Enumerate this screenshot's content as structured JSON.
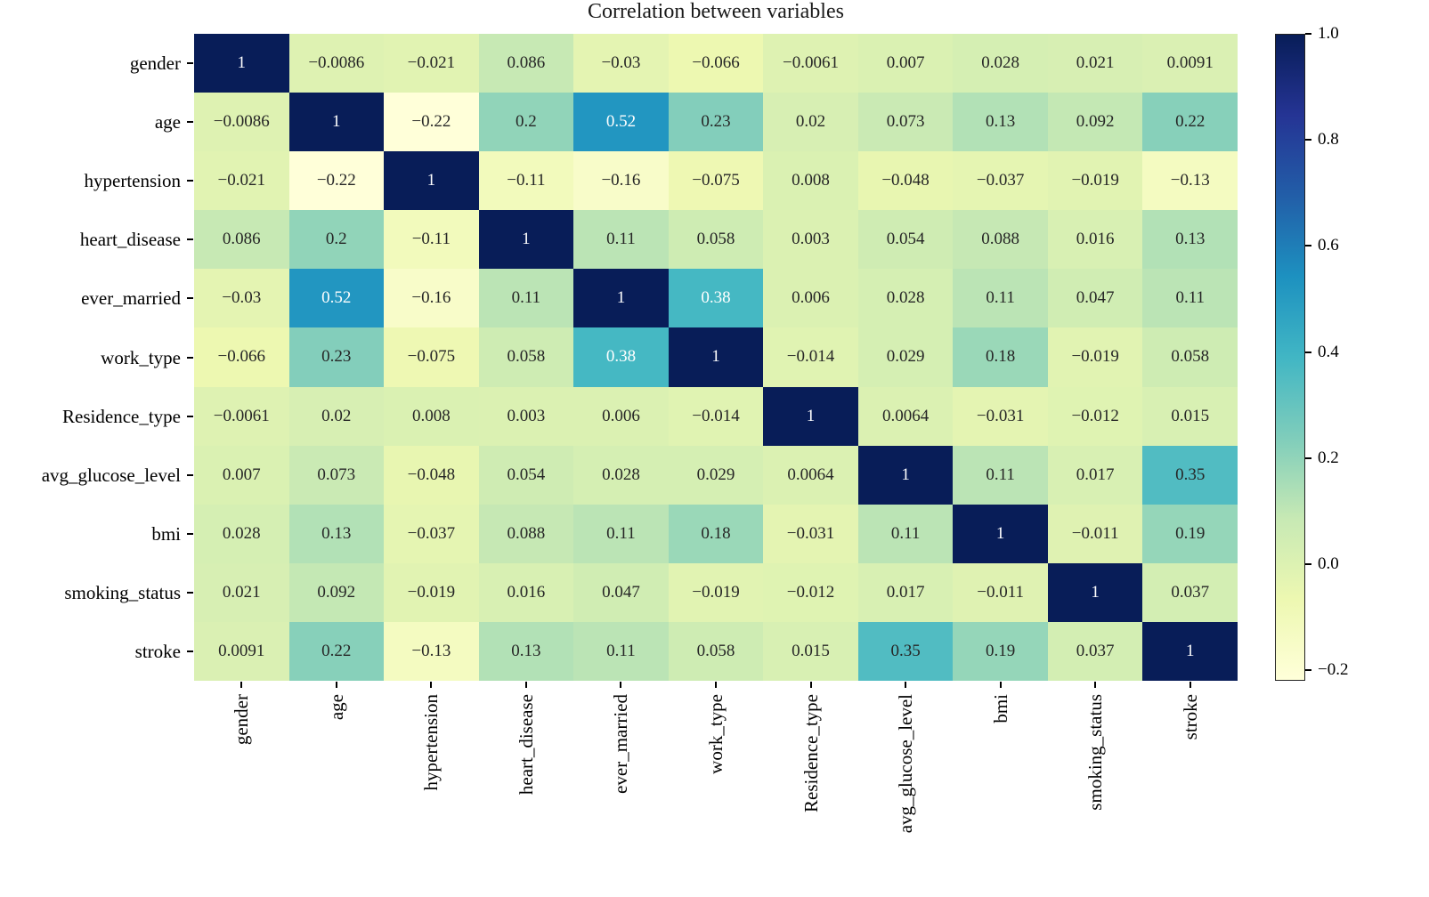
{
  "chart_data": {
    "type": "heatmap",
    "title": "Correlation between variables",
    "variables": [
      "gender",
      "age",
      "hypertension",
      "heart_disease",
      "ever_married",
      "work_type",
      "Residence_type",
      "avg_glucose_level",
      "bmi",
      "smoking_status",
      "stroke"
    ],
    "values": [
      [
        1,
        -0.0086,
        -0.021,
        0.086,
        -0.03,
        -0.066,
        -0.0061,
        0.007,
        0.028,
        0.021,
        0.0091
      ],
      [
        -0.0086,
        1,
        -0.22,
        0.2,
        0.52,
        0.23,
        0.02,
        0.073,
        0.13,
        0.092,
        0.22
      ],
      [
        -0.021,
        -0.22,
        1,
        -0.11,
        -0.16,
        -0.075,
        0.008,
        -0.048,
        -0.037,
        -0.019,
        -0.13
      ],
      [
        0.086,
        0.2,
        -0.11,
        1,
        0.11,
        0.058,
        0.003,
        0.054,
        0.088,
        0.016,
        0.13
      ],
      [
        -0.03,
        0.52,
        -0.16,
        0.11,
        1,
        0.38,
        0.006,
        0.028,
        0.11,
        0.047,
        0.11
      ],
      [
        -0.066,
        0.23,
        -0.075,
        0.058,
        0.38,
        1,
        -0.014,
        0.029,
        0.18,
        -0.019,
        0.058
      ],
      [
        -0.0061,
        0.02,
        0.008,
        0.003,
        0.006,
        -0.014,
        1,
        0.0064,
        -0.031,
        -0.012,
        0.015
      ],
      [
        0.007,
        0.073,
        -0.048,
        0.054,
        0.028,
        0.029,
        0.0064,
        1,
        0.11,
        0.017,
        0.35
      ],
      [
        0.028,
        0.13,
        -0.037,
        0.088,
        0.11,
        0.18,
        -0.031,
        0.11,
        1,
        -0.011,
        0.19
      ],
      [
        0.021,
        0.092,
        -0.019,
        0.016,
        0.047,
        -0.019,
        -0.012,
        0.017,
        -0.011,
        1,
        0.037
      ],
      [
        0.0091,
        0.22,
        -0.13,
        0.13,
        0.11,
        0.058,
        0.015,
        0.35,
        0.19,
        0.037,
        1
      ]
    ],
    "vmin": -0.22,
    "vmax": 1.0,
    "colormap": {
      "name": "YlGnBu",
      "stops": [
        "#ffffd9",
        "#edf8b1",
        "#c7e9b4",
        "#7fcdbb",
        "#41b6c4",
        "#1d91c0",
        "#225ea8",
        "#253494",
        "#081d58"
      ]
    },
    "colorbar_ticks": [
      1.0,
      0.8,
      0.6,
      0.4,
      0.2,
      0.0,
      -0.2
    ],
    "colorbar_tick_labels": [
      "1.0",
      "0.8",
      "0.6",
      "0.4",
      "0.2",
      "0.0",
      "−0.2"
    ],
    "text_colors": {
      "light": "#ffffff",
      "dark": "#262626"
    },
    "colorbar_position": "right",
    "grid": "off"
  }
}
